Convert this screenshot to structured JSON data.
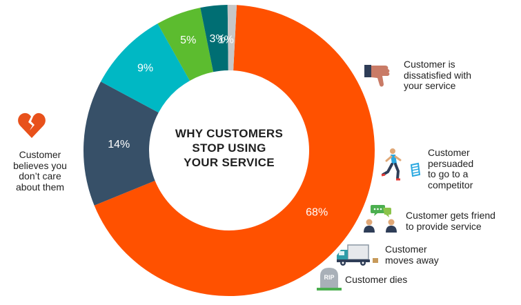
{
  "chart_data": {
    "type": "pie",
    "title": [
      "WHY CUSTOMERS",
      "STOP USING",
      "YOUR SERVICE"
    ],
    "categories": [
      "Customer believes you don’t care about them",
      "Customer is dissatisfied with your service",
      "Customer persuaded to go to a competitor",
      "Customer gets friend to provide service",
      "Customer moves away",
      "Customer dies"
    ],
    "values": [
      68,
      14,
      9,
      5,
      3,
      1
    ],
    "value_labels": [
      "68%",
      "14%",
      "9%",
      "5%",
      "3%",
      "1%"
    ],
    "colors": [
      "#ff5100",
      "#375068",
      "#00b8c4",
      "#5cbc2f",
      "#006e73",
      "#c7c7c7"
    ],
    "start_angle_deg": -87
  },
  "captions": [
    {
      "icon": "broken-heart-icon",
      "lines": [
        "Customer",
        "believes you",
        "don’t care",
        "about them"
      ]
    },
    {
      "icon": "thumbs-down-icon",
      "lines": [
        "Customer is",
        "dissatisfied with",
        "your service"
      ]
    },
    {
      "icon": "runner-icon",
      "lines": [
        "Customer",
        "persuaded",
        "to go to a",
        "competitor"
      ]
    },
    {
      "icon": "friends-chat-icon",
      "lines": [
        "Customer gets friend",
        "to provide service"
      ]
    },
    {
      "icon": "moving-truck-icon",
      "lines": [
        "Customer",
        "moves away"
      ]
    },
    {
      "icon": "tombstone-icon",
      "lines": [
        "Customer dies"
      ]
    }
  ],
  "tombstone_text": "RIP"
}
